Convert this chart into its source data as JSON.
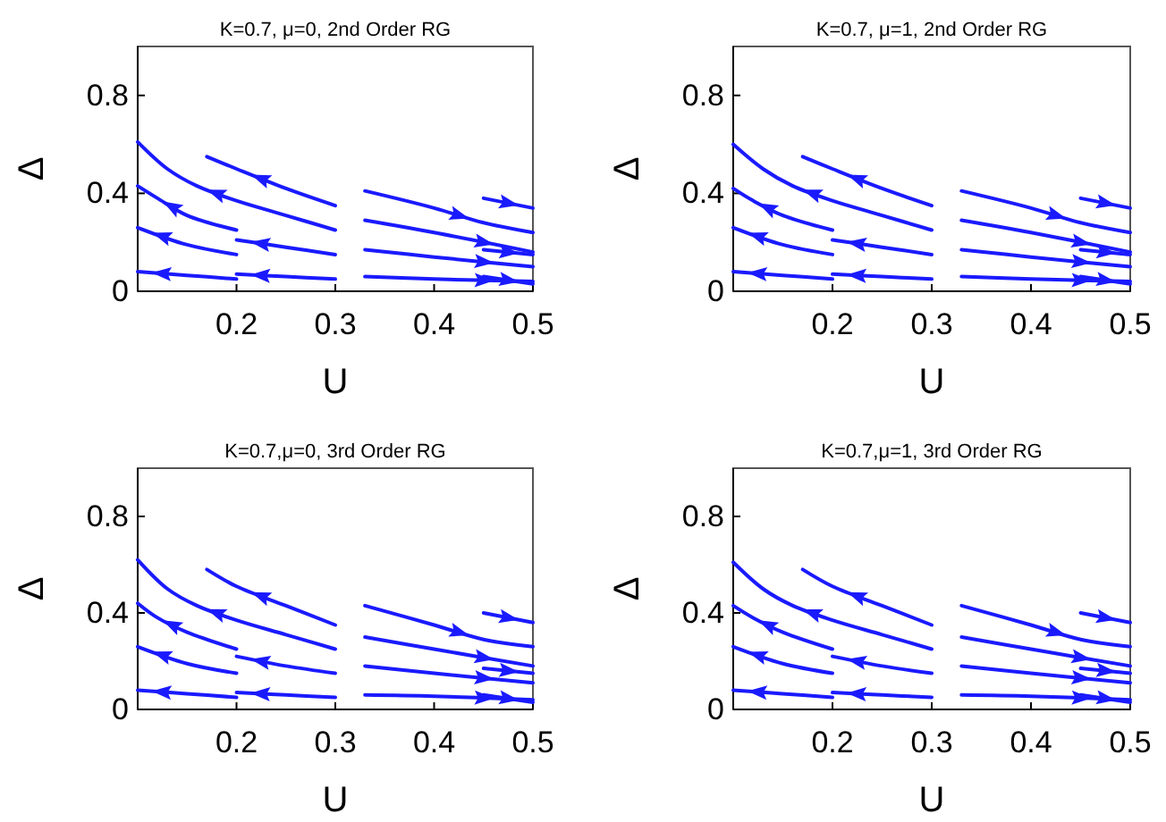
{
  "chart_data": [
    {
      "type": "line",
      "title": "K=0.7, μ=0, 2nd Order RG",
      "xlabel": "U",
      "ylabel": "Δ",
      "xlim": [
        0.1,
        0.5
      ],
      "ylim": [
        0,
        1
      ],
      "xticks": [
        0.2,
        0.3,
        0.4,
        0.5
      ],
      "yticks": [
        0,
        0.4,
        0.8
      ],
      "grid": false,
      "marker": "none",
      "series": [
        {
          "color": "#1a1aff",
          "x": [
            0.3,
            0.25,
            0.2,
            0.16,
            0.13,
            0.1
          ],
          "values": [
            0.25,
            0.31,
            0.37,
            0.43,
            0.5,
            0.61
          ]
        },
        {
          "color": "#1a1aff",
          "x": [
            0.3,
            0.25,
            0.2,
            0.17
          ],
          "values": [
            0.35,
            0.42,
            0.5,
            0.55
          ]
        },
        {
          "color": "#1a1aff",
          "x": [
            0.2,
            0.15,
            0.12,
            0.1
          ],
          "values": [
            0.25,
            0.31,
            0.38,
            0.43
          ]
        },
        {
          "color": "#1a1aff",
          "x": [
            0.2,
            0.15,
            0.1
          ],
          "values": [
            0.15,
            0.19,
            0.26
          ]
        },
        {
          "color": "#1a1aff",
          "x": [
            0.3,
            0.25,
            0.2
          ],
          "values": [
            0.15,
            0.18,
            0.21
          ]
        },
        {
          "color": "#1a1aff",
          "x": [
            0.2,
            0.15,
            0.1
          ],
          "values": [
            0.05,
            0.065,
            0.08
          ]
        },
        {
          "color": "#1a1aff",
          "x": [
            0.3,
            0.25,
            0.2
          ],
          "values": [
            0.05,
            0.06,
            0.07
          ]
        },
        {
          "color": "#1a1aff",
          "x": [
            0.33,
            0.4,
            0.45,
            0.5
          ],
          "values": [
            0.41,
            0.34,
            0.28,
            0.24
          ]
        },
        {
          "color": "#1a1aff",
          "x": [
            0.33,
            0.4,
            0.5
          ],
          "values": [
            0.29,
            0.24,
            0.16
          ]
        },
        {
          "color": "#1a1aff",
          "x": [
            0.33,
            0.4,
            0.5
          ],
          "values": [
            0.17,
            0.14,
            0.1
          ]
        },
        {
          "color": "#1a1aff",
          "x": [
            0.33,
            0.4,
            0.5
          ],
          "values": [
            0.06,
            0.05,
            0.04
          ]
        },
        {
          "color": "#1a1aff",
          "x": [
            0.45,
            0.5
          ],
          "values": [
            0.38,
            0.34
          ]
        },
        {
          "color": "#1a1aff",
          "x": [
            0.45,
            0.5
          ],
          "values": [
            0.17,
            0.15
          ]
        },
        {
          "color": "#1a1aff",
          "x": [
            0.45,
            0.5
          ],
          "values": [
            0.06,
            0.03
          ]
        }
      ]
    },
    {
      "type": "line",
      "title": "K=0.7, μ=1, 2nd Order RG",
      "xlabel": "U",
      "ylabel": "Δ",
      "xlim": [
        0.1,
        0.5
      ],
      "ylim": [
        0,
        1
      ],
      "xticks": [
        0.2,
        0.3,
        0.4,
        0.5
      ],
      "yticks": [
        0,
        0.4,
        0.8
      ],
      "grid": false,
      "marker": "none",
      "series": [
        {
          "color": "#1a1aff",
          "x": [
            0.3,
            0.25,
            0.2,
            0.16,
            0.13,
            0.1
          ],
          "values": [
            0.25,
            0.31,
            0.37,
            0.43,
            0.5,
            0.6
          ]
        },
        {
          "color": "#1a1aff",
          "x": [
            0.3,
            0.25,
            0.2,
            0.17
          ],
          "values": [
            0.35,
            0.42,
            0.5,
            0.55
          ]
        },
        {
          "color": "#1a1aff",
          "x": [
            0.2,
            0.15,
            0.12,
            0.1
          ],
          "values": [
            0.25,
            0.31,
            0.37,
            0.42
          ]
        },
        {
          "color": "#1a1aff",
          "x": [
            0.2,
            0.15,
            0.1
          ],
          "values": [
            0.15,
            0.19,
            0.26
          ]
        },
        {
          "color": "#1a1aff",
          "x": [
            0.3,
            0.25,
            0.2
          ],
          "values": [
            0.15,
            0.18,
            0.21
          ]
        },
        {
          "color": "#1a1aff",
          "x": [
            0.2,
            0.15,
            0.1
          ],
          "values": [
            0.05,
            0.065,
            0.08
          ]
        },
        {
          "color": "#1a1aff",
          "x": [
            0.3,
            0.25,
            0.2
          ],
          "values": [
            0.05,
            0.06,
            0.07
          ]
        },
        {
          "color": "#1a1aff",
          "x": [
            0.33,
            0.4,
            0.45,
            0.5
          ],
          "values": [
            0.41,
            0.34,
            0.28,
            0.24
          ]
        },
        {
          "color": "#1a1aff",
          "x": [
            0.33,
            0.4,
            0.5
          ],
          "values": [
            0.29,
            0.24,
            0.16
          ]
        },
        {
          "color": "#1a1aff",
          "x": [
            0.33,
            0.4,
            0.5
          ],
          "values": [
            0.17,
            0.14,
            0.1
          ]
        },
        {
          "color": "#1a1aff",
          "x": [
            0.33,
            0.4,
            0.5
          ],
          "values": [
            0.06,
            0.05,
            0.04
          ]
        },
        {
          "color": "#1a1aff",
          "x": [
            0.45,
            0.5
          ],
          "values": [
            0.38,
            0.34
          ]
        },
        {
          "color": "#1a1aff",
          "x": [
            0.45,
            0.5
          ],
          "values": [
            0.17,
            0.15
          ]
        },
        {
          "color": "#1a1aff",
          "x": [
            0.45,
            0.5
          ],
          "values": [
            0.06,
            0.03
          ]
        }
      ]
    },
    {
      "type": "line",
      "title": "K=0.7,μ=0, 3rd Order RG",
      "xlabel": "U",
      "ylabel": "Δ",
      "xlim": [
        0.1,
        0.5
      ],
      "ylim": [
        0,
        1
      ],
      "xticks": [
        0.2,
        0.3,
        0.4,
        0.5
      ],
      "yticks": [
        0,
        0.4,
        0.8
      ],
      "grid": false,
      "marker": "none",
      "series": [
        {
          "color": "#1a1aff",
          "x": [
            0.3,
            0.25,
            0.2,
            0.16,
            0.13,
            0.1
          ],
          "values": [
            0.25,
            0.31,
            0.37,
            0.43,
            0.5,
            0.62
          ]
        },
        {
          "color": "#1a1aff",
          "x": [
            0.3,
            0.25,
            0.2,
            0.17
          ],
          "values": [
            0.35,
            0.43,
            0.51,
            0.58
          ]
        },
        {
          "color": "#1a1aff",
          "x": [
            0.2,
            0.15,
            0.12,
            0.1
          ],
          "values": [
            0.25,
            0.32,
            0.38,
            0.44
          ]
        },
        {
          "color": "#1a1aff",
          "x": [
            0.2,
            0.15,
            0.1
          ],
          "values": [
            0.15,
            0.19,
            0.26
          ]
        },
        {
          "color": "#1a1aff",
          "x": [
            0.3,
            0.25,
            0.2
          ],
          "values": [
            0.15,
            0.18,
            0.22
          ]
        },
        {
          "color": "#1a1aff",
          "x": [
            0.2,
            0.15,
            0.1
          ],
          "values": [
            0.05,
            0.065,
            0.08
          ]
        },
        {
          "color": "#1a1aff",
          "x": [
            0.3,
            0.25,
            0.2
          ],
          "values": [
            0.05,
            0.06,
            0.07
          ]
        },
        {
          "color": "#1a1aff",
          "x": [
            0.33,
            0.4,
            0.45,
            0.5
          ],
          "values": [
            0.43,
            0.35,
            0.29,
            0.26
          ]
        },
        {
          "color": "#1a1aff",
          "x": [
            0.33,
            0.4,
            0.5
          ],
          "values": [
            0.3,
            0.25,
            0.18
          ]
        },
        {
          "color": "#1a1aff",
          "x": [
            0.33,
            0.4,
            0.5
          ],
          "values": [
            0.18,
            0.15,
            0.11
          ]
        },
        {
          "color": "#1a1aff",
          "x": [
            0.33,
            0.4,
            0.5
          ],
          "values": [
            0.06,
            0.055,
            0.04
          ]
        },
        {
          "color": "#1a1aff",
          "x": [
            0.45,
            0.5
          ],
          "values": [
            0.4,
            0.36
          ]
        },
        {
          "color": "#1a1aff",
          "x": [
            0.45,
            0.5
          ],
          "values": [
            0.17,
            0.15
          ]
        },
        {
          "color": "#1a1aff",
          "x": [
            0.45,
            0.5
          ],
          "values": [
            0.06,
            0.03
          ]
        }
      ]
    },
    {
      "type": "line",
      "title": "K=0.7,μ=1, 3rd Order RG",
      "xlabel": "U",
      "ylabel": "Δ",
      "xlim": [
        0.1,
        0.5
      ],
      "ylim": [
        0,
        1
      ],
      "xticks": [
        0.2,
        0.3,
        0.4,
        0.5
      ],
      "yticks": [
        0,
        0.4,
        0.8
      ],
      "grid": false,
      "marker": "none",
      "series": [
        {
          "color": "#1a1aff",
          "x": [
            0.3,
            0.25,
            0.2,
            0.16,
            0.13,
            0.1
          ],
          "values": [
            0.25,
            0.31,
            0.37,
            0.43,
            0.5,
            0.61
          ]
        },
        {
          "color": "#1a1aff",
          "x": [
            0.3,
            0.25,
            0.2,
            0.17
          ],
          "values": [
            0.35,
            0.43,
            0.51,
            0.58
          ]
        },
        {
          "color": "#1a1aff",
          "x": [
            0.2,
            0.15,
            0.12,
            0.1
          ],
          "values": [
            0.25,
            0.32,
            0.38,
            0.43
          ]
        },
        {
          "color": "#1a1aff",
          "x": [
            0.2,
            0.15,
            0.1
          ],
          "values": [
            0.15,
            0.19,
            0.26
          ]
        },
        {
          "color": "#1a1aff",
          "x": [
            0.3,
            0.25,
            0.2
          ],
          "values": [
            0.15,
            0.18,
            0.22
          ]
        },
        {
          "color": "#1a1aff",
          "x": [
            0.2,
            0.15,
            0.1
          ],
          "values": [
            0.05,
            0.065,
            0.08
          ]
        },
        {
          "color": "#1a1aff",
          "x": [
            0.3,
            0.25,
            0.2
          ],
          "values": [
            0.05,
            0.06,
            0.07
          ]
        },
        {
          "color": "#1a1aff",
          "x": [
            0.33,
            0.4,
            0.45,
            0.5
          ],
          "values": [
            0.43,
            0.35,
            0.29,
            0.26
          ]
        },
        {
          "color": "#1a1aff",
          "x": [
            0.33,
            0.4,
            0.5
          ],
          "values": [
            0.3,
            0.25,
            0.18
          ]
        },
        {
          "color": "#1a1aff",
          "x": [
            0.33,
            0.4,
            0.5
          ],
          "values": [
            0.18,
            0.15,
            0.11
          ]
        },
        {
          "color": "#1a1aff",
          "x": [
            0.33,
            0.4,
            0.5
          ],
          "values": [
            0.06,
            0.055,
            0.04
          ]
        },
        {
          "color": "#1a1aff",
          "x": [
            0.45,
            0.5
          ],
          "values": [
            0.4,
            0.36
          ]
        },
        {
          "color": "#1a1aff",
          "x": [
            0.45,
            0.5
          ],
          "values": [
            0.17,
            0.15
          ]
        },
        {
          "color": "#1a1aff",
          "x": [
            0.45,
            0.5
          ],
          "values": [
            0.06,
            0.03
          ]
        }
      ]
    }
  ]
}
